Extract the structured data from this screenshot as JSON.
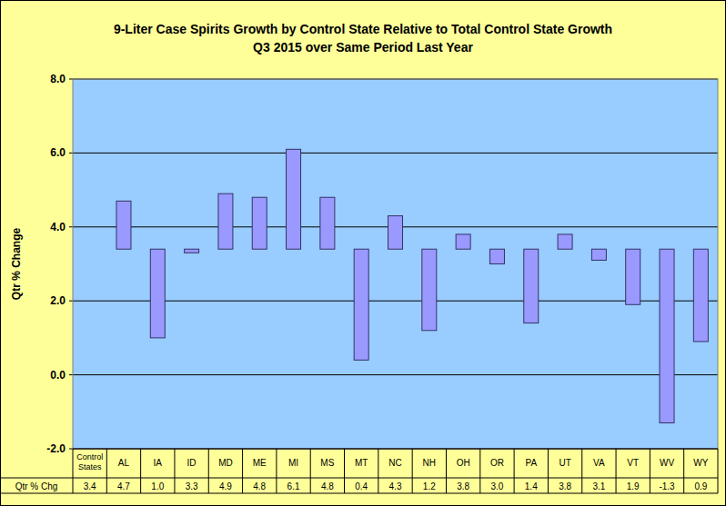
{
  "chart_data": {
    "type": "bar",
    "title": "9-Liter Case Spirits Growth by Control State Relative to Total Control State Growth",
    "subtitle": "Q3 2015 over Same Period Last Year",
    "y_label": "Qtr % Change",
    "data_table_label": "Qtr % Chg",
    "baseline": 3.4,
    "categories": [
      "Control States",
      "AL",
      "IA",
      "ID",
      "MD",
      "ME",
      "MI",
      "MS",
      "MT",
      "NC",
      "NH",
      "OH",
      "OR",
      "PA",
      "UT",
      "VA",
      "VT",
      "WV",
      "WY"
    ],
    "values": [
      3.4,
      4.7,
      1.0,
      3.3,
      4.9,
      4.8,
      6.1,
      4.8,
      0.4,
      4.3,
      1.2,
      3.8,
      3.0,
      1.4,
      3.8,
      3.1,
      1.9,
      -1.3,
      0.9
    ],
    "value_labels": [
      "3.4",
      "4.7",
      "1.0",
      "3.3",
      "4.9",
      "4.8",
      "6.1",
      "4.8",
      "0.4",
      "4.3",
      "1.2",
      "3.8",
      "3.0",
      "1.4",
      "3.8",
      "3.1",
      "1.9",
      "-1.3",
      "0.9"
    ],
    "data_labels": true,
    "color": "#9999FF",
    "ylim": [
      -2,
      8
    ],
    "yticks": [
      {
        "value": -2,
        "label": "-2.0"
      },
      {
        "value": 0,
        "label": "0.0"
      },
      {
        "value": 2,
        "label": "2.0"
      },
      {
        "value": 4,
        "label": "4.0"
      },
      {
        "value": 6,
        "label": "6.0"
      },
      {
        "value": 8,
        "label": "8.0"
      }
    ],
    "grid": true
  }
}
